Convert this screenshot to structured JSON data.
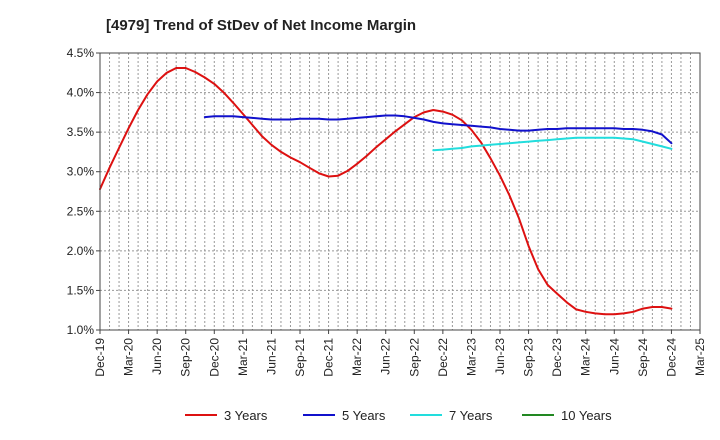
{
  "chart_data": {
    "type": "line",
    "title": "[4979]  Trend of StDev of Net Income Margin",
    "xlabel": "",
    "ylabel": "",
    "x_ticks": [
      "Dec-19",
      "Mar-20",
      "Jun-20",
      "Sep-20",
      "Dec-20",
      "Mar-21",
      "Jun-21",
      "Sep-21",
      "Dec-21",
      "Mar-22",
      "Jun-22",
      "Sep-22",
      "Dec-22",
      "Mar-23",
      "Jun-23",
      "Sep-23",
      "Dec-23",
      "Mar-24",
      "Jun-24",
      "Sep-24",
      "Dec-24",
      "Mar-25"
    ],
    "y_ticks": [
      "1.0%",
      "1.5%",
      "2.0%",
      "2.5%",
      "3.0%",
      "3.5%",
      "4.0%",
      "4.5%"
    ],
    "ylim": [
      1.0,
      4.5
    ],
    "grid": true,
    "legend_position": "bottom",
    "series": [
      {
        "name": "3 Years",
        "color": "#dd1111",
        "points": [
          [
            "Dec-19",
            2.78
          ],
          [
            "Jan-20",
            3.05
          ],
          [
            "Feb-20",
            3.3
          ],
          [
            "Mar-20",
            3.55
          ],
          [
            "Apr-20",
            3.78
          ],
          [
            "May-20",
            3.98
          ],
          [
            "Jun-20",
            4.14
          ],
          [
            "Jul-20",
            4.25
          ],
          [
            "Aug-20",
            4.31
          ],
          [
            "Sep-20",
            4.31
          ],
          [
            "Oct-20",
            4.26
          ],
          [
            "Nov-20",
            4.19
          ],
          [
            "Dec-20",
            4.11
          ],
          [
            "Jan-21",
            4.0
          ],
          [
            "Feb-21",
            3.87
          ],
          [
            "Mar-21",
            3.73
          ],
          [
            "Apr-21",
            3.59
          ],
          [
            "May-21",
            3.45
          ],
          [
            "Jun-21",
            3.34
          ],
          [
            "Jul-21",
            3.25
          ],
          [
            "Aug-21",
            3.18
          ],
          [
            "Sep-21",
            3.12
          ],
          [
            "Oct-21",
            3.05
          ],
          [
            "Nov-21",
            2.98
          ],
          [
            "Dec-21",
            2.94
          ],
          [
            "Jan-22",
            2.95
          ],
          [
            "Feb-22",
            3.01
          ],
          [
            "Mar-22",
            3.1
          ],
          [
            "Apr-22",
            3.2
          ],
          [
            "May-22",
            3.31
          ],
          [
            "Jun-22",
            3.41
          ],
          [
            "Jul-22",
            3.51
          ],
          [
            "Aug-22",
            3.6
          ],
          [
            "Sep-22",
            3.69
          ],
          [
            "Oct-22",
            3.75
          ],
          [
            "Nov-22",
            3.78
          ],
          [
            "Dec-22",
            3.76
          ],
          [
            "Jan-23",
            3.72
          ],
          [
            "Feb-23",
            3.65
          ],
          [
            "Mar-23",
            3.53
          ],
          [
            "Apr-23",
            3.37
          ],
          [
            "May-23",
            3.17
          ],
          [
            "Jun-23",
            2.95
          ],
          [
            "Jul-23",
            2.7
          ],
          [
            "Aug-23",
            2.41
          ],
          [
            "Sep-23",
            2.06
          ],
          [
            "Oct-23",
            1.77
          ],
          [
            "Nov-23",
            1.57
          ],
          [
            "Dec-23",
            1.46
          ],
          [
            "Jan-24",
            1.35
          ],
          [
            "Feb-24",
            1.26
          ],
          [
            "Mar-24",
            1.23
          ],
          [
            "Apr-24",
            1.21
          ],
          [
            "May-24",
            1.2
          ],
          [
            "Jun-24",
            1.2
          ],
          [
            "Jul-24",
            1.21
          ],
          [
            "Aug-24",
            1.23
          ],
          [
            "Sep-24",
            1.27
          ],
          [
            "Oct-24",
            1.29
          ],
          [
            "Nov-24",
            1.29
          ],
          [
            "Dec-24",
            1.27
          ]
        ]
      },
      {
        "name": "5 Years",
        "color": "#1111cc",
        "points": [
          [
            "Nov-20",
            3.69
          ],
          [
            "Dec-20",
            3.7
          ],
          [
            "Jan-21",
            3.7
          ],
          [
            "Feb-21",
            3.7
          ],
          [
            "Mar-21",
            3.69
          ],
          [
            "Apr-21",
            3.68
          ],
          [
            "May-21",
            3.67
          ],
          [
            "Jun-21",
            3.66
          ],
          [
            "Jul-21",
            3.66
          ],
          [
            "Aug-21",
            3.66
          ],
          [
            "Sep-21",
            3.67
          ],
          [
            "Oct-21",
            3.67
          ],
          [
            "Nov-21",
            3.67
          ],
          [
            "Dec-21",
            3.66
          ],
          [
            "Jan-22",
            3.66
          ],
          [
            "Feb-22",
            3.67
          ],
          [
            "Mar-22",
            3.68
          ],
          [
            "Apr-22",
            3.69
          ],
          [
            "May-22",
            3.7
          ],
          [
            "Jun-22",
            3.71
          ],
          [
            "Jul-22",
            3.71
          ],
          [
            "Aug-22",
            3.7
          ],
          [
            "Sep-22",
            3.68
          ],
          [
            "Oct-22",
            3.66
          ],
          [
            "Nov-22",
            3.63
          ],
          [
            "Dec-22",
            3.61
          ],
          [
            "Jan-23",
            3.6
          ],
          [
            "Feb-23",
            3.59
          ],
          [
            "Mar-23",
            3.58
          ],
          [
            "Apr-23",
            3.57
          ],
          [
            "May-23",
            3.56
          ],
          [
            "Jun-23",
            3.54
          ],
          [
            "Jul-23",
            3.53
          ],
          [
            "Aug-23",
            3.52
          ],
          [
            "Sep-23",
            3.52
          ],
          [
            "Oct-23",
            3.53
          ],
          [
            "Nov-23",
            3.54
          ],
          [
            "Dec-23",
            3.54
          ],
          [
            "Jan-24",
            3.55
          ],
          [
            "Feb-24",
            3.55
          ],
          [
            "Mar-24",
            3.55
          ],
          [
            "Apr-24",
            3.55
          ],
          [
            "May-24",
            3.55
          ],
          [
            "Jun-24",
            3.55
          ],
          [
            "Jul-24",
            3.54
          ],
          [
            "Aug-24",
            3.54
          ],
          [
            "Sep-24",
            3.53
          ],
          [
            "Oct-24",
            3.51
          ],
          [
            "Nov-24",
            3.47
          ],
          [
            "Dec-24",
            3.36
          ]
        ]
      },
      {
        "name": "7 Years",
        "color": "#22dddd",
        "points": [
          [
            "Nov-22",
            3.27
          ],
          [
            "Dec-22",
            3.28
          ],
          [
            "Jan-23",
            3.29
          ],
          [
            "Feb-23",
            3.3
          ],
          [
            "Mar-23",
            3.32
          ],
          [
            "Apr-23",
            3.33
          ],
          [
            "May-23",
            3.34
          ],
          [
            "Jun-23",
            3.35
          ],
          [
            "Jul-23",
            3.36
          ],
          [
            "Aug-23",
            3.37
          ],
          [
            "Sep-23",
            3.38
          ],
          [
            "Oct-23",
            3.39
          ],
          [
            "Nov-23",
            3.4
          ],
          [
            "Dec-23",
            3.41
          ],
          [
            "Jan-24",
            3.42
          ],
          [
            "Feb-24",
            3.43
          ],
          [
            "Mar-24",
            3.43
          ],
          [
            "Apr-24",
            3.43
          ],
          [
            "May-24",
            3.43
          ],
          [
            "Jun-24",
            3.43
          ],
          [
            "Jul-24",
            3.42
          ],
          [
            "Aug-24",
            3.41
          ],
          [
            "Sep-24",
            3.38
          ],
          [
            "Oct-24",
            3.35
          ],
          [
            "Nov-24",
            3.32
          ],
          [
            "Dec-24",
            3.29
          ]
        ]
      },
      {
        "name": "10 Years",
        "color": "#228822",
        "points": []
      }
    ]
  }
}
